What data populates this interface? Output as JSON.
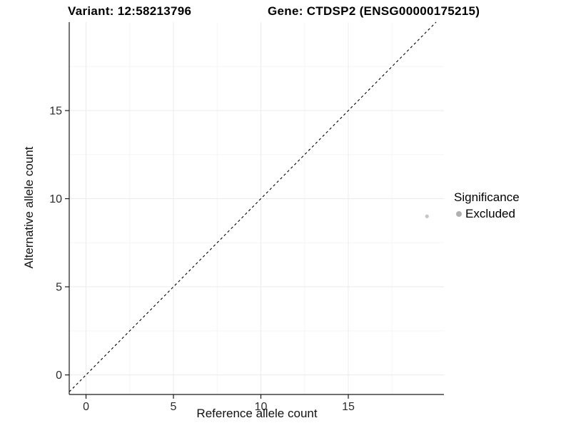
{
  "header": {
    "variant_title": "Variant: 12:58213796",
    "gene_title": "Gene: CTDSP2 (ENSG00000175215)"
  },
  "chart_data": {
    "type": "scatter",
    "xlabel": "Reference allele count",
    "ylabel": "Alternative allele count",
    "xlim": [
      -0.96,
      20.47
    ],
    "ylim": [
      -1.11,
      20.02
    ],
    "x_major_ticks": [
      0,
      5,
      10,
      15
    ],
    "x_minor_ticks": [
      2.5,
      7.5,
      12.5,
      17.5
    ],
    "y_major_ticks": [
      0,
      5,
      10,
      15
    ],
    "y_minor_ticks": [
      2.5,
      7.5,
      12.5,
      17.5
    ],
    "grid": "major+minor",
    "identity_line": {
      "equation": "y = x",
      "style": "dashed",
      "color": "#000000"
    },
    "points": [
      {
        "x": 19.5,
        "y": 9,
        "series": "Excluded"
      }
    ],
    "series": [
      {
        "name": "Excluded",
        "color": "#c6c6c6"
      }
    ],
    "legend": {
      "title": "Significance",
      "position": "right",
      "items": [
        {
          "label": "Excluded",
          "color": "#b0b0b0"
        }
      ]
    }
  },
  "colors": {
    "background": "#ffffff",
    "grid_major": "#ebebeb",
    "grid_minor": "#f5f5f5",
    "axis_line": "#1a1a1a",
    "tick_mark": "#1a1a1a",
    "tick_label": "#2b2b2b",
    "point": "#c6c6c6",
    "legend_point": "#b0b0b0",
    "diagonal": "#000000"
  }
}
